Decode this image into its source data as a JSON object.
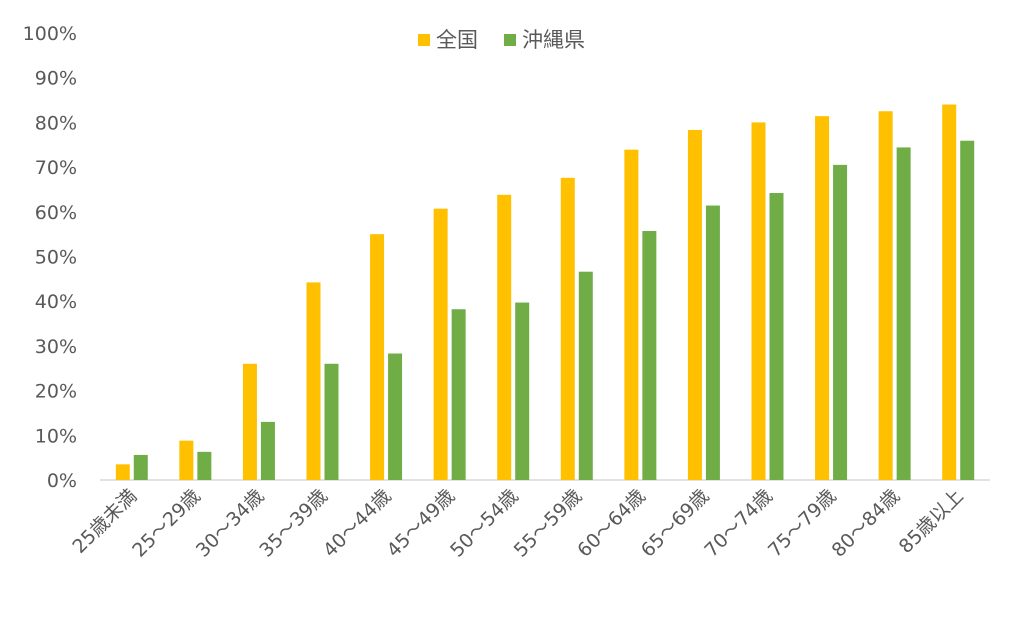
{
  "chart_data": {
    "type": "bar",
    "categories": [
      "25歳未満",
      "25～29歳",
      "30～34歳",
      "35～39歳",
      "40～44歳",
      "45～49歳",
      "50～54歳",
      "55～59歳",
      "60～64歳",
      "65～69歳",
      "70～74歳",
      "75～79歳",
      "80～84歳",
      "85歳以上"
    ],
    "series": [
      {
        "name": "全国",
        "color": "#FFC000",
        "values": [
          3.5,
          8.8,
          26.0,
          44.2,
          55.0,
          60.7,
          63.8,
          67.6,
          73.9,
          78.3,
          80.0,
          81.4,
          82.5,
          84.0
        ]
      },
      {
        "name": "沖縄県",
        "color": "#70AD47",
        "values": [
          5.6,
          6.3,
          13.0,
          26.0,
          28.3,
          38.2,
          39.7,
          46.6,
          55.7,
          61.4,
          64.2,
          70.5,
          74.4,
          75.9
        ]
      }
    ],
    "ylim": [
      0,
      100
    ],
    "yticks": [
      "0%",
      "10%",
      "20%",
      "30%",
      "40%",
      "50%",
      "60%",
      "70%",
      "80%",
      "90%",
      "100%"
    ],
    "legend_position": "top-center",
    "grid": false
  }
}
